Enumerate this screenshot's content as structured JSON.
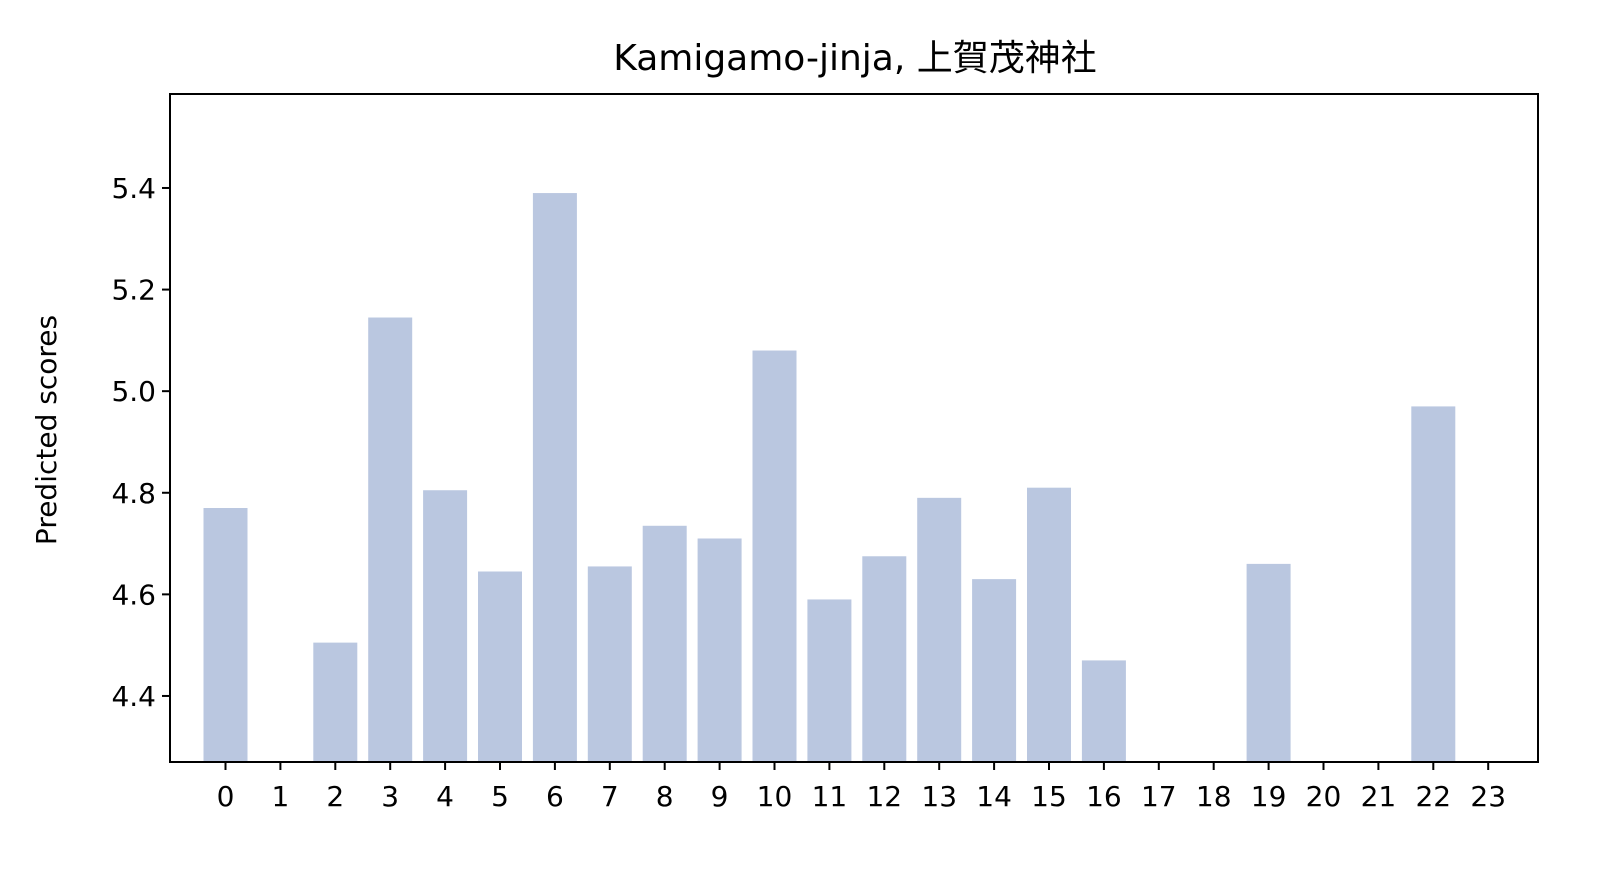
{
  "chart_data": {
    "type": "bar",
    "title": "Kamigamo-jinja, 上賀茂神社",
    "xlabel": "",
    "ylabel": "Predicted scores",
    "categories": [
      "0",
      "1",
      "2",
      "3",
      "4",
      "5",
      "6",
      "7",
      "8",
      "9",
      "10",
      "11",
      "12",
      "13",
      "14",
      "15",
      "16",
      "17",
      "18",
      "19",
      "20",
      "21",
      "22",
      "23"
    ],
    "values": [
      4.77,
      null,
      4.505,
      5.145,
      4.805,
      4.645,
      5.39,
      4.655,
      4.735,
      4.71,
      5.08,
      4.59,
      4.675,
      4.79,
      4.63,
      4.81,
      4.47,
      null,
      null,
      4.66,
      null,
      null,
      4.97,
      null
    ],
    "ylim": [
      4.27,
      5.585
    ],
    "yticks": [
      "4.4",
      "4.6",
      "4.8",
      "5.0",
      "5.2",
      "5.4"
    ],
    "grid": false,
    "colors": {
      "bar": "#bac7e0",
      "axis": "#000000"
    }
  }
}
